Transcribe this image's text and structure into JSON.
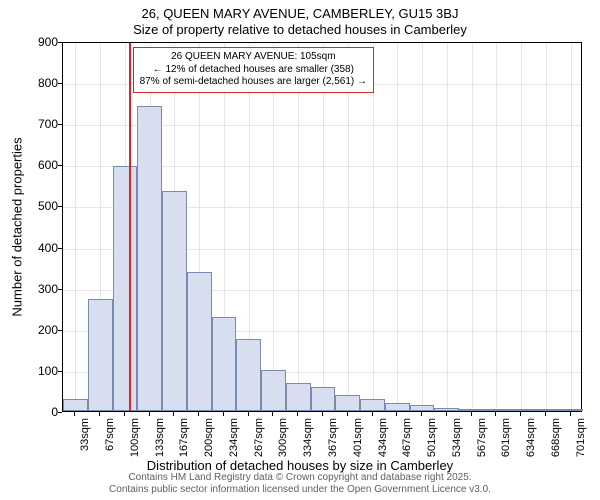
{
  "chart": {
    "type": "histogram",
    "title_line1": "26, QUEEN MARY AVENUE, CAMBERLEY, GU15 3BJ",
    "title_line2": "Size of property relative to detached houses in Camberley",
    "xlabel": "Distribution of detached houses by size in Camberley",
    "ylabel": "Number of detached properties",
    "background_color": "#ffffff",
    "grid_color": "#e6e6e6",
    "bar_fill": "#d6deef",
    "bar_border": "#7a8bb0",
    "marker_color": "#d62728",
    "marker_value": 105,
    "ylim": [
      0,
      900
    ],
    "yticks": [
      0,
      100,
      200,
      300,
      400,
      500,
      600,
      700,
      800,
      900
    ],
    "xticks": [
      "33sqm",
      "67sqm",
      "100sqm",
      "133sqm",
      "167sqm",
      "200sqm",
      "234sqm",
      "267sqm",
      "300sqm",
      "334sqm",
      "367sqm",
      "401sqm",
      "434sqm",
      "467sqm",
      "501sqm",
      "534sqm",
      "567sqm",
      "601sqm",
      "634sqm",
      "668sqm",
      "701sqm"
    ],
    "bars": [
      30,
      272,
      595,
      742,
      535,
      338,
      228,
      174,
      99,
      68,
      58,
      38,
      30,
      20,
      14,
      8,
      6,
      3,
      3,
      2,
      1
    ],
    "callout": {
      "line1": "26 QUEEN MARY AVENUE: 105sqm",
      "line2": "← 12% of detached houses are smaller (358)",
      "line3": "87% of semi-detached houses are larger (2,561) →"
    },
    "credits_line1": "Contains HM Land Registry data © Crown copyright and database right 2025.",
    "credits_line2": "Contains public sector information licensed under the Open Government Licence v3.0."
  }
}
